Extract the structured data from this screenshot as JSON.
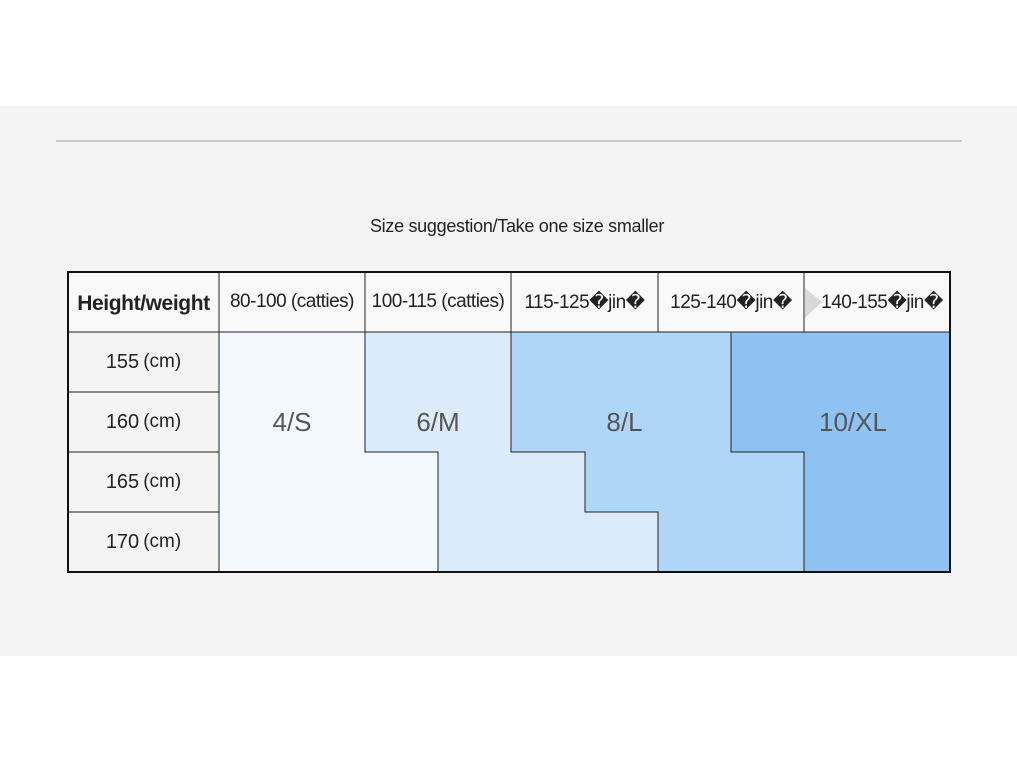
{
  "title": "Size suggestion/Take one size smaller",
  "table": {
    "corner_header": "Height/weight",
    "weight_columns": [
      "80-100 (catties)",
      "100-115 (catties)",
      "115-125�jin�",
      "125-140�jin�",
      "140-155�jin�"
    ],
    "height_rows": [
      {
        "value": "155",
        "unit": "(cm)"
      },
      {
        "value": "160",
        "unit": "(cm)"
      },
      {
        "value": "165",
        "unit": "(cm)"
      },
      {
        "value": "170",
        "unit": "(cm)"
      }
    ],
    "sizes": [
      "4/S",
      "6/M",
      "8/L",
      "10/XL"
    ]
  },
  "colors": {
    "size_4S": "#f3f9ff",
    "size_6M": "#dcebfb",
    "size_8L": "#afd6f6",
    "size_10XL": "#8ec2f2",
    "panel_background": "#f4f4f4",
    "border": "#222222"
  }
}
